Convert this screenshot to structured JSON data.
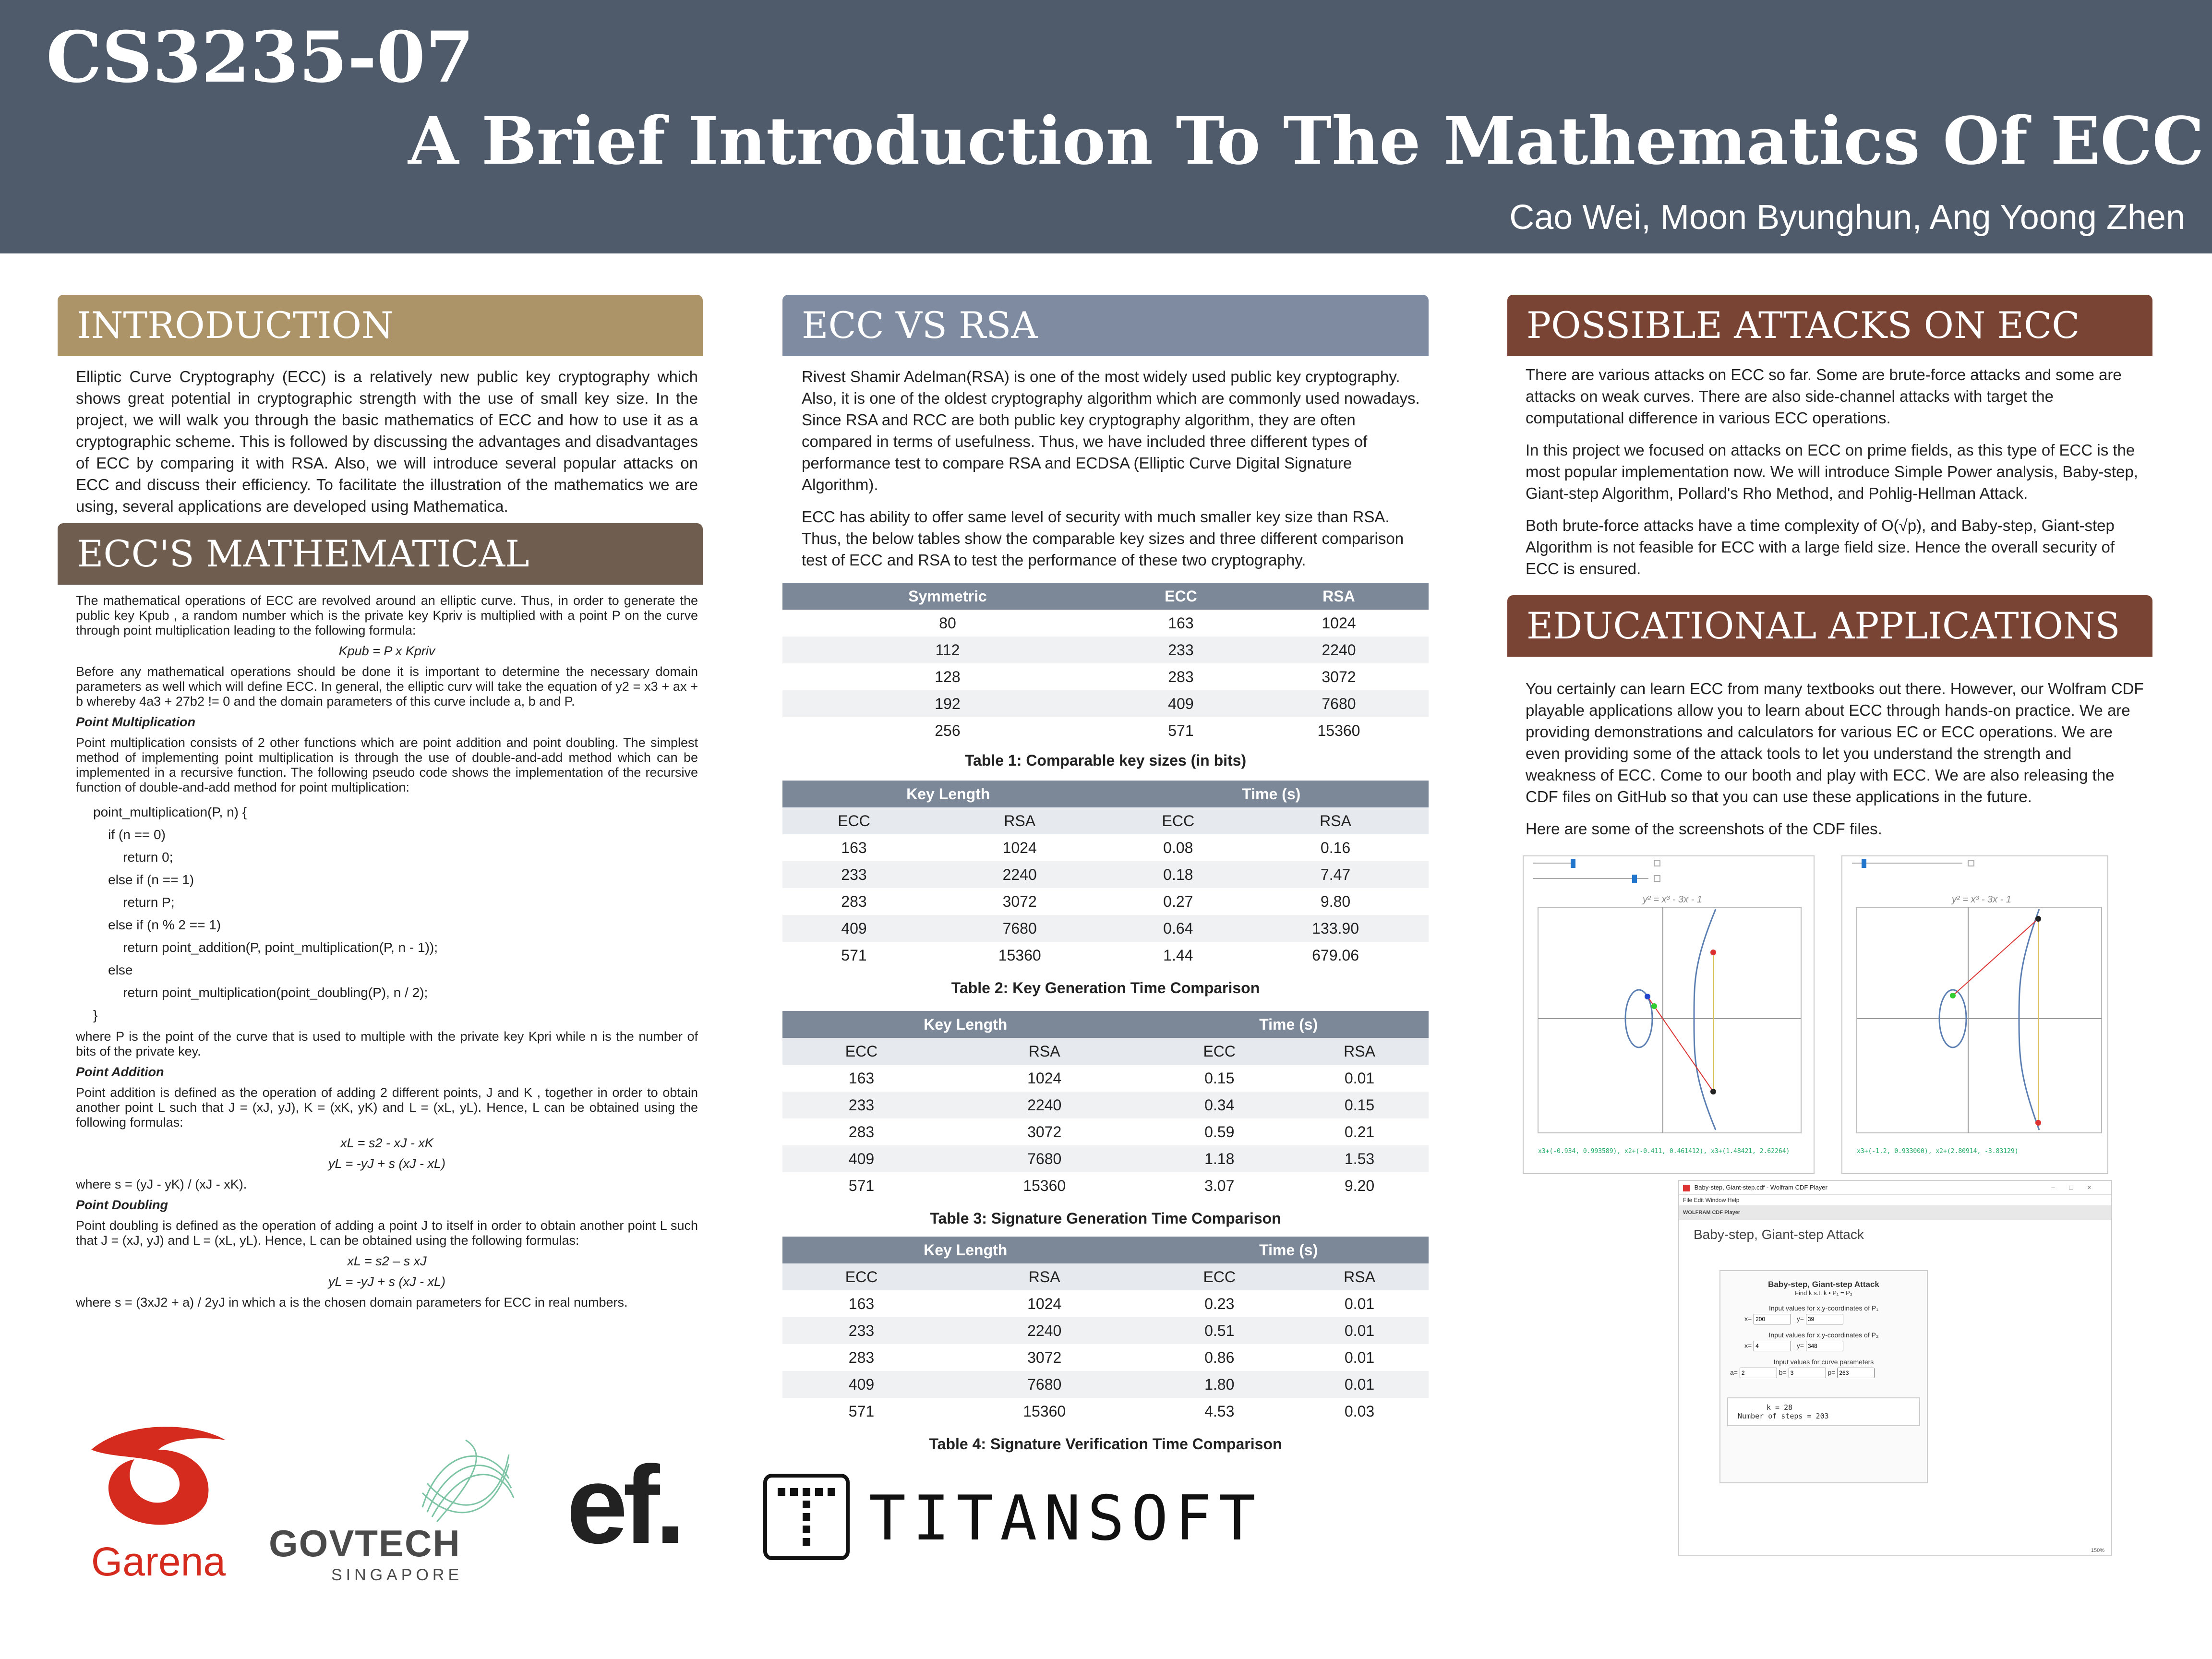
{
  "header": {
    "course": "CS3235-07",
    "title": "A Brief Introduction To The Mathematics Of ECC",
    "authors": "Cao Wei, Moon Byunghun, Ang Yoong Zhen"
  },
  "colors": {
    "header_bg": "#4f5b6b",
    "intro": "#ad9468",
    "math": "#6f5d4f",
    "ecc_rsa": "#7f8ba0",
    "attacks": "#7a4434",
    "edu": "#7a4434"
  },
  "intro": {
    "heading": "INTRODUCTION",
    "text": "Elliptic Curve Cryptography (ECC) is a relatively new public key cryptography which shows great potential in cryptographic strength with the use of small key size. In the project, we will walk you through the basic mathematics of ECC and how to use it as a cryptographic scheme. This is followed by discussing the advantages and disadvantages of ECC by comparing it with RSA. Also, we will introduce several popular attacks on ECC and discuss their efficiency. To facilitate the illustration of the mathematics we are using, several applications are developed using Mathematica."
  },
  "math": {
    "heading": "ECC'S MATHEMATICAL OPERATIONS",
    "p1": "The mathematical operations of ECC are revolved around an elliptic curve. Thus, in order to generate the public key Kpub , a random number which is the private key Kpriv is multiplied with a point P on the curve through point multiplication leading to the following formula:",
    "f1": "Kpub = P x Kpriv",
    "p2": "Before any mathematical operations should be done it is important to determine the necessary domain parameters as well which will define ECC. In general, the elliptic curv will take the equation of y2 = x3 + ax + b whereby 4a3 + 27b2 != 0 and the domain parameters of this curve include a, b and P.",
    "pm_title": "Point Multiplication",
    "p3": "Point multiplication consists of 2 other functions which are point addition and point doubling. The simplest method of implementing point multiplication is through the use of double-and-add method which can be implemented in a recursive function. The following pseudo code shows the implementation of the recursive function of double-and-add method for point multiplication:",
    "code": [
      "point_multiplication(P, n) {",
      "    if (n == 0)",
      "        return 0;",
      "    else if (n == 1)",
      "        return P;",
      "    else if (n % 2 == 1)",
      "        return point_addition(P, point_multiplication(P, n - 1));",
      "    else",
      "        return point_multiplication(point_doubling(P), n / 2);",
      "}"
    ],
    "p4": "where P is the point of the curve that is used to multiple with the private key Kpri while n is the number of bits of the private key.",
    "pa_title": "Point Addition",
    "p5": "Point addition is defined as the operation of adding 2 different points, J and K , together in order to obtain another point L such that J = (xJ, yJ), K = (xK, yK) and L = (xL, yL). Hence, L can be obtained using the following formulas:",
    "f2": "xL = s2 - xJ - xK",
    "f3": "yL = -yJ + s (xJ - xL)",
    "p6": "where s = (yJ - yK) / (xJ - xK).",
    "pd_title": "Point Doubling",
    "p7": "Point doubling is defined as the operation of adding a point J to itself in order to obtain another point L such that J = (xJ, yJ) and L = (xL, yL). Hence, L can be obtained using the following formulas:",
    "f4": "xL = s2 – s xJ",
    "f5": "yL = -yJ + s (xJ - xL)",
    "p8": "where s = (3xJ2 + a) / 2yJ in which a is the chosen domain parameters for ECC in real numbers."
  },
  "ecc_rsa": {
    "heading": "ECC VS RSA",
    "p1": "Rivest Shamir Adelman(RSA) is one of the most widely used public key cryptography. Also, it is one of the oldest cryptography algorithm which are commonly used nowadays. Since RSA and RCC are both public key cryptography algorithm, they are often compared in terms of usefulness. Thus, we have included three different types of performance test to compare RSA and ECDSA (Elliptic Curve Digital Signature Algorithm).",
    "p2": "ECC has ability to offer same level of security with much smaller key size than RSA. Thus, the below tables show the comparable key sizes and three different comparison test of ECC and RSA to test the performance of these two cryptography."
  },
  "table1": {
    "headers": [
      "Symmetric",
      "ECC",
      "RSA"
    ],
    "rows": [
      [
        "80",
        "163",
        "1024"
      ],
      [
        "112",
        "233",
        "2240"
      ],
      [
        "128",
        "283",
        "3072"
      ],
      [
        "192",
        "409",
        "7680"
      ],
      [
        "256",
        "571",
        "15360"
      ]
    ],
    "caption": "Table 1: Comparable key sizes (in bits)"
  },
  "table2": {
    "group_headers": [
      "Key Length",
      "Time (s)"
    ],
    "sub_headers": [
      "ECC",
      "RSA",
      "ECC",
      "RSA"
    ],
    "rows": [
      [
        "163",
        "1024",
        "0.08",
        "0.16"
      ],
      [
        "233",
        "2240",
        "0.18",
        "7.47"
      ],
      [
        "283",
        "3072",
        "0.27",
        "9.80"
      ],
      [
        "409",
        "7680",
        "0.64",
        "133.90"
      ],
      [
        "571",
        "15360",
        "1.44",
        "679.06"
      ]
    ],
    "caption": "Table 2: Key Generation Time Comparison"
  },
  "table3": {
    "group_headers": [
      "Key Length",
      "Time (s)"
    ],
    "sub_headers": [
      "ECC",
      "RSA",
      "ECC",
      "RSA"
    ],
    "rows": [
      [
        "163",
        "1024",
        "0.15",
        "0.01"
      ],
      [
        "233",
        "2240",
        "0.34",
        "0.15"
      ],
      [
        "283",
        "3072",
        "0.59",
        "0.21"
      ],
      [
        "409",
        "7680",
        "1.18",
        "1.53"
      ],
      [
        "571",
        "15360",
        "3.07",
        "9.20"
      ]
    ],
    "caption": "Table 3: Signature Generation Time Comparison"
  },
  "table4": {
    "group_headers": [
      "Key Length",
      "Time (s)"
    ],
    "sub_headers": [
      "ECC",
      "RSA",
      "ECC",
      "RSA"
    ],
    "rows": [
      [
        "163",
        "1024",
        "0.23",
        "0.01"
      ],
      [
        "233",
        "2240",
        "0.51",
        "0.01"
      ],
      [
        "283",
        "3072",
        "0.86",
        "0.01"
      ],
      [
        "409",
        "7680",
        "1.80",
        "0.01"
      ],
      [
        "571",
        "15360",
        "4.53",
        "0.03"
      ]
    ],
    "caption": "Table 4: Signature Verification Time Comparison"
  },
  "attacks": {
    "heading": "POSSIBLE ATTACKS ON ECC",
    "p1": "There are various attacks on ECC so far. Some are brute-force attacks and some are attacks on weak curves. There are also side-channel attacks with target the computational difference in various ECC operations.",
    "p2": "In this project we focused on attacks on ECC on prime fields, as this type of ECC is the most popular implementation now. We will introduce Simple Power analysis, Baby-step, Giant-step Algorithm, Pollard's Rho Method, and Pohlig-Hellman Attack.",
    "p3": "Both brute-force attacks have a time complexity of O(√p), and Baby-step, Giant-step Algorithm is not feasible for ECC with a large field size. Hence the overall security of ECC is ensured."
  },
  "edu": {
    "heading": "EDUCATIONAL APPLICATIONS",
    "p1": "You certainly can learn ECC from many textbooks out there. However, our Wolfram CDF playable applications allow you to learn about ECC through hands-on practice. We are providing demonstrations and calculators for various EC or ECC operations. We are even providing some of the attack tools to let you understand the strength and weakness of ECC. Come to our booth and play with ECC. We are also releasing the CDF files on GitHub so that you can use these applications in the future.",
    "p2": "Here are some of the screenshots of the CDF files."
  },
  "screens": {
    "plot_title": "y² = x³ - 3x - 1",
    "plot1_caption": "x3+(-0.934, 0.993589), x2+(-0.411, 0.461412), x3+(1.48421, 2.62264)",
    "plot2_caption": "x3+(-1.2, 0.933000), x2+(2.80914, -3.83129)",
    "window_title": "Baby-step, Giant-step.cdf - Wolfram CDF Player",
    "menu": "File  Edit  Window  Help",
    "player_label": "WOLFRAM CDF Player",
    "panel_label": "Baby-step, Giant-step Attack",
    "box_title": "Baby-step, Giant-step Attack",
    "box_sub": "Find k s.t. k • P₁ = P₂",
    "p1_label": "Input values for x,y-coordinates of P₁",
    "p1_x": "200",
    "p1_y": "39",
    "p2_label": "Input values for x,y-coordinates of P₂",
    "p2_x": "4",
    "p2_y": "348",
    "curve_label": "Input values for curve parameters",
    "a": "2",
    "b": "3",
    "p": "263",
    "result_k": "k = 28",
    "result_steps": "Number of steps = 203",
    "zoom": "150%"
  },
  "logos": {
    "garena": "Garena",
    "govtech": "GOVTECH",
    "govtech_sub": "SINGAPORE",
    "ef": "ef.",
    "titansoft": "TITANSOFT"
  }
}
